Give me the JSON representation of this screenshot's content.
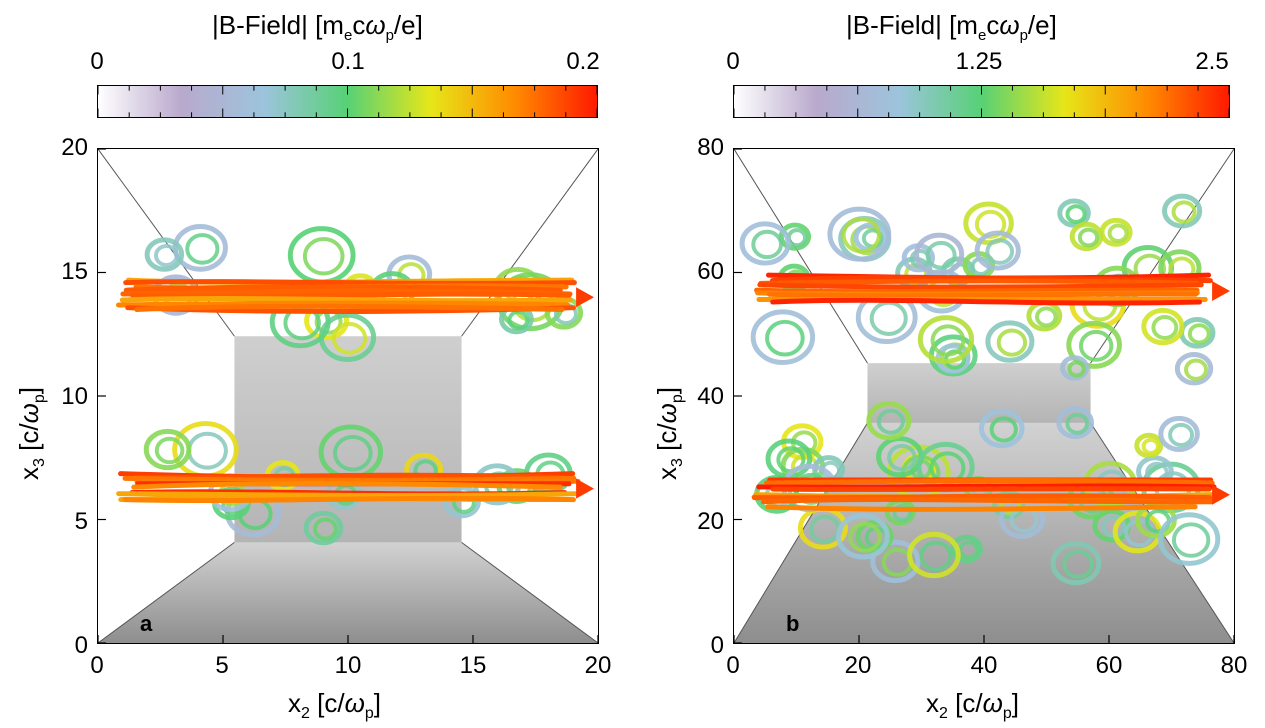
{
  "chart_data": [
    {
      "type": "other",
      "panel_label": "a",
      "colorbar": {
        "title": "|B-Field|  [m_e c ω_p /e]",
        "title_parts": {
          "main": "|B-Field|  [m",
          "sub1": "e",
          "mid": "c",
          "omega": "ω",
          "sub2": "p",
          "end": "/e]"
        },
        "ticks": [
          "0",
          "0.1",
          "0.2"
        ],
        "range": [
          0,
          0.2
        ],
        "colormap": [
          "#ffffff",
          "#b9a9cc",
          "#9cc4dc",
          "#57d176",
          "#e6e619",
          "#ff8c00",
          "#ff1a00"
        ]
      },
      "xaxis": {
        "label_main": "x",
        "label_sub": "2",
        "label_unit": "[c/",
        "label_omega": "ω",
        "label_omega_sub": "p",
        "label_end": "]",
        "ticks": [
          "0",
          "5",
          "10",
          "15",
          "20"
        ],
        "range": [
          0,
          20
        ]
      },
      "yaxis": {
        "label_main": "x",
        "label_sub": "3",
        "label_unit": "[c/",
        "label_omega": "ω",
        "label_omega_sub": "p",
        "label_end": "]",
        "ticks": [
          "0",
          "5",
          "10",
          "15",
          "20"
        ],
        "range": [
          0,
          20
        ]
      },
      "filament_bands_x3": [
        [
          4.5,
          8.0
        ],
        [
          12.0,
          16.0
        ]
      ]
    },
    {
      "type": "other",
      "panel_label": "b",
      "colorbar": {
        "title": "|B-Field|  [m_e c ω_p /e]",
        "title_parts": {
          "main": "|B-Field|  [m",
          "sub1": "e",
          "mid": "c",
          "omega": "ω",
          "sub2": "p",
          "end": "/e]"
        },
        "ticks": [
          "0",
          "1.25",
          "2.5"
        ],
        "range": [
          0,
          2.5
        ],
        "colormap": [
          "#ffffff",
          "#b9a9cc",
          "#9cc4dc",
          "#57d176",
          "#e6e619",
          "#ff8c00",
          "#ff1a00"
        ]
      },
      "xaxis": {
        "label_main": "x",
        "label_sub": "2",
        "label_unit": "[c/",
        "label_omega": "ω",
        "label_omega_sub": "p",
        "label_end": "]",
        "ticks": [
          "0",
          "20",
          "40",
          "60",
          "80"
        ],
        "range": [
          0,
          80
        ]
      },
      "yaxis": {
        "label_main": "x",
        "label_sub": "3",
        "label_unit": "[c/",
        "label_omega": "ω",
        "label_omega_sub": "p",
        "label_end": "]",
        "ticks": [
          "0",
          "20",
          "40",
          "60",
          "80"
        ],
        "range": [
          0,
          80
        ]
      },
      "filament_bands_x3": [
        [
          12,
          36
        ],
        [
          44,
          70
        ]
      ]
    }
  ]
}
